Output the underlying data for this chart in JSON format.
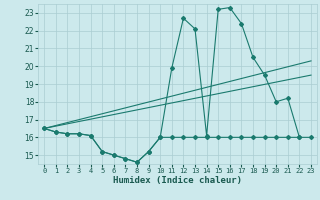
{
  "xlabel": "Humidex (Indice chaleur)",
  "background_color": "#cce9ec",
  "grid_color": "#aacdd2",
  "line_color": "#1a7a6e",
  "xlim": [
    -0.5,
    23.5
  ],
  "ylim": [
    14.5,
    23.5
  ],
  "yticks": [
    15,
    16,
    17,
    18,
    19,
    20,
    21,
    22,
    23
  ],
  "xtick_labels": [
    "0",
    "1",
    "2",
    "3",
    "4",
    "5",
    "6",
    "7",
    "8",
    "9",
    "10",
    "11",
    "12",
    "13",
    "14",
    "15",
    "16",
    "17",
    "18",
    "19",
    "20",
    "21",
    "22",
    "23"
  ],
  "xtick_pos": [
    0,
    1,
    2,
    3,
    4,
    5,
    6,
    7,
    8,
    9,
    10,
    11,
    12,
    13,
    14,
    15,
    16,
    17,
    18,
    19,
    20,
    21,
    22,
    23
  ],
  "series1_x": [
    0,
    1,
    2,
    3,
    4,
    5,
    6,
    7,
    8,
    9,
    10,
    11,
    12,
    13,
    14,
    15,
    16,
    17,
    18,
    19,
    20,
    21,
    22
  ],
  "series1_y": [
    16.5,
    16.3,
    16.2,
    16.2,
    16.1,
    15.2,
    15.0,
    14.8,
    14.6,
    15.2,
    16.0,
    19.9,
    22.7,
    22.1,
    16.1,
    23.2,
    23.3,
    22.4,
    20.5,
    19.5,
    18.0,
    18.2,
    16.0
  ],
  "series2_x": [
    0,
    1,
    2,
    3,
    4,
    5,
    6,
    7,
    8,
    9,
    10,
    11,
    12,
    13,
    14,
    15,
    16,
    17,
    18,
    19,
    20,
    21,
    22,
    23
  ],
  "series2_y": [
    16.5,
    16.3,
    16.2,
    16.2,
    16.1,
    15.2,
    15.0,
    14.8,
    14.6,
    15.2,
    16.0,
    16.0,
    16.0,
    16.0,
    16.0,
    16.0,
    16.0,
    16.0,
    16.0,
    16.0,
    16.0,
    16.0,
    16.0,
    16.0
  ],
  "series3_x": [
    0,
    23
  ],
  "series3_y": [
    16.5,
    20.3
  ],
  "series4_x": [
    0,
    23
  ],
  "series4_y": [
    16.5,
    19.5
  ]
}
